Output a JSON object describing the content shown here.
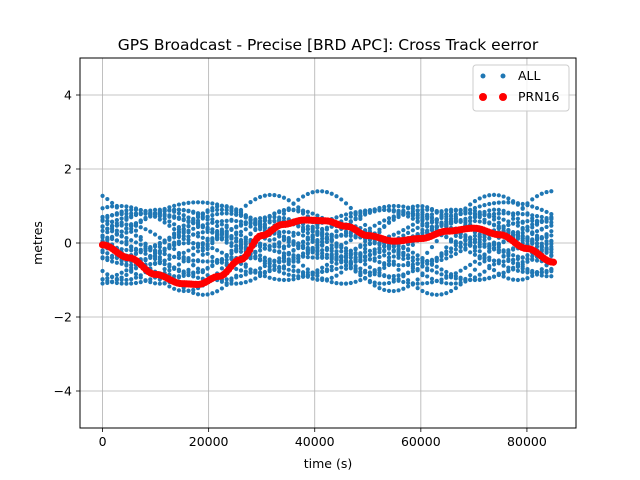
{
  "chart_data": {
    "type": "scatter",
    "title": "GPS Broadcast - Precise [BRD APC]: Cross Track eerror",
    "xlabel": "time (s)",
    "ylabel": "metres",
    "xlim": [
      -4250,
      89250
    ],
    "ylim": [
      -5,
      5
    ],
    "xticks": [
      0,
      20000,
      40000,
      60000,
      80000
    ],
    "xtick_labels": [
      "0",
      "20000",
      "40000",
      "60000",
      "80000"
    ],
    "yticks": [
      -4,
      -2,
      0,
      2,
      4
    ],
    "ytick_labels": [
      "−4",
      "−2",
      "0",
      "2",
      "4"
    ],
    "grid": true,
    "legend_position": "top-right",
    "series": [
      {
        "name": "ALL",
        "color": "#1f77b4",
        "marker": "small-dot",
        "x_start": 0,
        "x_end": 85000,
        "x_step": 900,
        "curves": [
          {
            "offset": 0.2,
            "amp": 0.7,
            "period": 43000,
            "phase": 0.0
          },
          {
            "offset": 0.1,
            "amp": 0.9,
            "period": 52000,
            "phase": 1.2
          },
          {
            "offset": -0.3,
            "amp": 0.6,
            "period": 40000,
            "phase": 2.5
          },
          {
            "offset": 0.3,
            "amp": 0.5,
            "period": 35000,
            "phase": 3.7
          },
          {
            "offset": -0.1,
            "amp": 1.0,
            "period": 46000,
            "phase": 4.8
          },
          {
            "offset": 0.0,
            "amp": 0.8,
            "period": 60000,
            "phase": 0.6
          },
          {
            "offset": 0.4,
            "amp": 0.5,
            "period": 38000,
            "phase": 5.5
          },
          {
            "offset": -0.4,
            "amp": 0.6,
            "period": 48000,
            "phase": 1.9
          },
          {
            "offset": 0.1,
            "amp": 1.2,
            "period": 42000,
            "phase": 3.1
          },
          {
            "offset": -0.2,
            "amp": 0.9,
            "period": 55000,
            "phase": 4.2
          },
          {
            "offset": 0.0,
            "amp": 1.4,
            "period": 44000,
            "phase": 2.0
          },
          {
            "offset": 0.5,
            "amp": 0.4,
            "period": 30000,
            "phase": 0.3
          },
          {
            "offset": -0.5,
            "amp": 0.5,
            "period": 36000,
            "phase": 5.0
          },
          {
            "offset": 0.2,
            "amp": 0.7,
            "period": 65000,
            "phase": 2.8
          },
          {
            "offset": -0.1,
            "amp": 0.7,
            "period": 33000,
            "phase": 1.5
          },
          {
            "offset": 0.0,
            "amp": 0.6,
            "period": 50000,
            "phase": 3.9
          },
          {
            "offset": 0.3,
            "amp": 0.8,
            "period": 58000,
            "phase": 5.9
          },
          {
            "offset": -0.3,
            "amp": 0.8,
            "period": 41000,
            "phase": 0.9
          },
          {
            "offset": 0.1,
            "amp": 0.5,
            "period": 45000,
            "phase": 4.5
          },
          {
            "offset": -0.2,
            "amp": 1.1,
            "period": 39000,
            "phase": 2.2
          },
          {
            "offset": 0.0,
            "amp": 0.9,
            "period": 47000,
            "phase": 6.0
          },
          {
            "offset": 0.2,
            "amp": 0.6,
            "period": 70000,
            "phase": 1.0
          },
          {
            "offset": -0.1,
            "amp": 0.4,
            "period": 28000,
            "phase": 3.4
          },
          {
            "offset": 0.0,
            "amp": 1.0,
            "period": 37000,
            "phase": 4.0
          }
        ]
      },
      {
        "name": "PRN16",
        "color": "#ff0000",
        "marker": "large-dot",
        "points": [
          [
            0,
            -0.05
          ],
          [
            5000,
            -0.4
          ],
          [
            10000,
            -0.85
          ],
          [
            15000,
            -1.1
          ],
          [
            18000,
            -1.12
          ],
          [
            22000,
            -0.9
          ],
          [
            26000,
            -0.45
          ],
          [
            30000,
            0.2
          ],
          [
            34000,
            0.5
          ],
          [
            38000,
            0.62
          ],
          [
            42000,
            0.6
          ],
          [
            46000,
            0.45
          ],
          [
            50000,
            0.2
          ],
          [
            55000,
            0.05
          ],
          [
            60000,
            0.12
          ],
          [
            65000,
            0.32
          ],
          [
            70000,
            0.4
          ],
          [
            75000,
            0.22
          ],
          [
            80000,
            -0.15
          ],
          [
            85000,
            -0.52
          ]
        ]
      }
    ]
  }
}
